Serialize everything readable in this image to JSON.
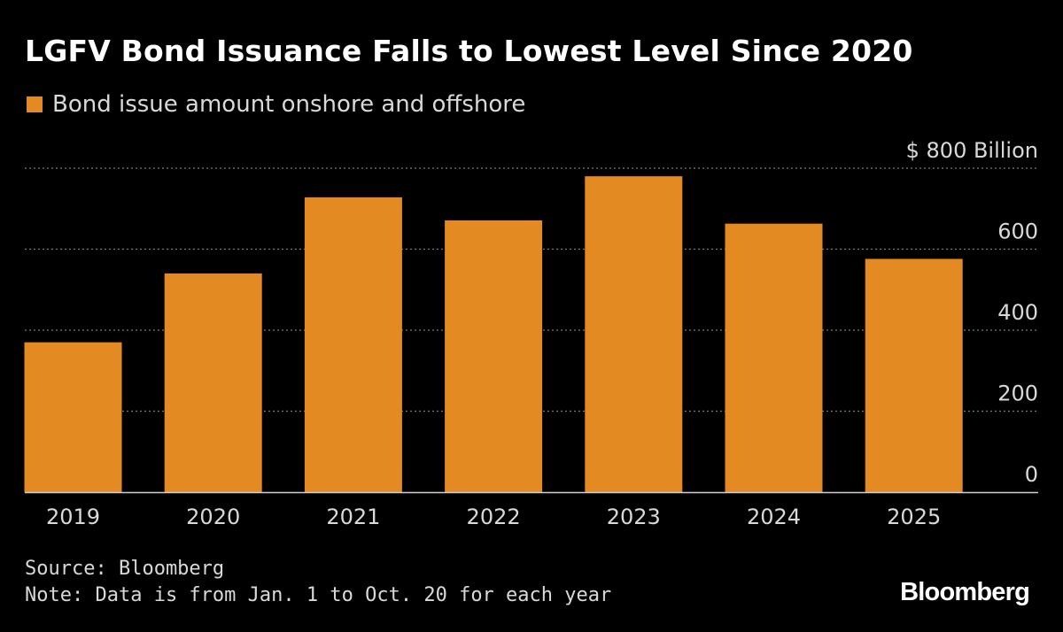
{
  "header": {
    "title": "LGFV Bond Issuance Falls to Lowest Level Since 2020"
  },
  "legend": {
    "label": "Bond issue amount onshore and offshore",
    "color": "#e38b22"
  },
  "chart_data": {
    "type": "bar",
    "title": "LGFV Bond Issuance Falls to Lowest Level Since 2020",
    "categories": [
      "2019",
      "2020",
      "2021",
      "2022",
      "2023",
      "2024",
      "2025"
    ],
    "series": [
      {
        "name": "Bond issue amount onshore and offshore",
        "values": [
          370,
          540,
          728,
          671,
          780,
          663,
          576
        ],
        "color": "#e38b22"
      }
    ],
    "yticks": [
      {
        "value": 0,
        "label": "0"
      },
      {
        "value": 200,
        "label": "200"
      },
      {
        "value": 400,
        "label": "400"
      },
      {
        "value": 600,
        "label": "600"
      },
      {
        "value": 800,
        "label": "$ 800 Billion"
      }
    ],
    "ylim": [
      0,
      800
    ],
    "xlabel": "",
    "ylabel": "",
    "grid": true,
    "legend_position": "top-left",
    "axis_side": "right"
  },
  "footer": {
    "source": "Source: Bloomberg",
    "note": "Note: Data is from Jan. 1 to Oct. 20 for each year"
  },
  "brand": {
    "name": "Bloomberg"
  }
}
